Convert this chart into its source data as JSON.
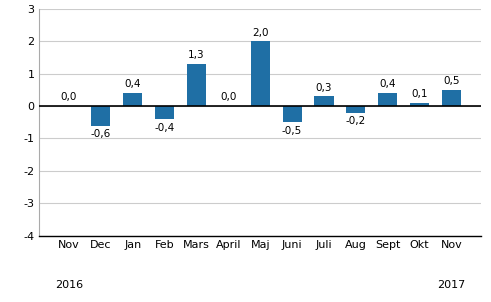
{
  "categories": [
    "Nov",
    "Dec",
    "Jan",
    "Feb",
    "Mars",
    "April",
    "Maj",
    "Juni",
    "Juli",
    "Aug",
    "Sept",
    "Okt",
    "Nov"
  ],
  "values": [
    0.0,
    -0.6,
    0.4,
    -0.4,
    1.3,
    0.0,
    2.0,
    -0.5,
    0.3,
    -0.2,
    0.4,
    0.1,
    0.5
  ],
  "labels": [
    "0,0",
    "-0,6",
    "0,4",
    "-0,4",
    "1,3",
    "0,0",
    "2,0",
    "-0,5",
    "0,3",
    "-0,2",
    "0,4",
    "0,1",
    "0,5"
  ],
  "bar_color": "#1f6fa5",
  "ylim": [
    -4,
    3
  ],
  "yticks": [
    -4,
    -3,
    -2,
    -1,
    0,
    1,
    2,
    3
  ],
  "year_labels": [
    [
      "2016",
      0
    ],
    [
      "2017",
      12
    ]
  ],
  "background_color": "#ffffff",
  "grid_color": "#cccccc",
  "label_fontsize": 7.5,
  "tick_fontsize": 8
}
